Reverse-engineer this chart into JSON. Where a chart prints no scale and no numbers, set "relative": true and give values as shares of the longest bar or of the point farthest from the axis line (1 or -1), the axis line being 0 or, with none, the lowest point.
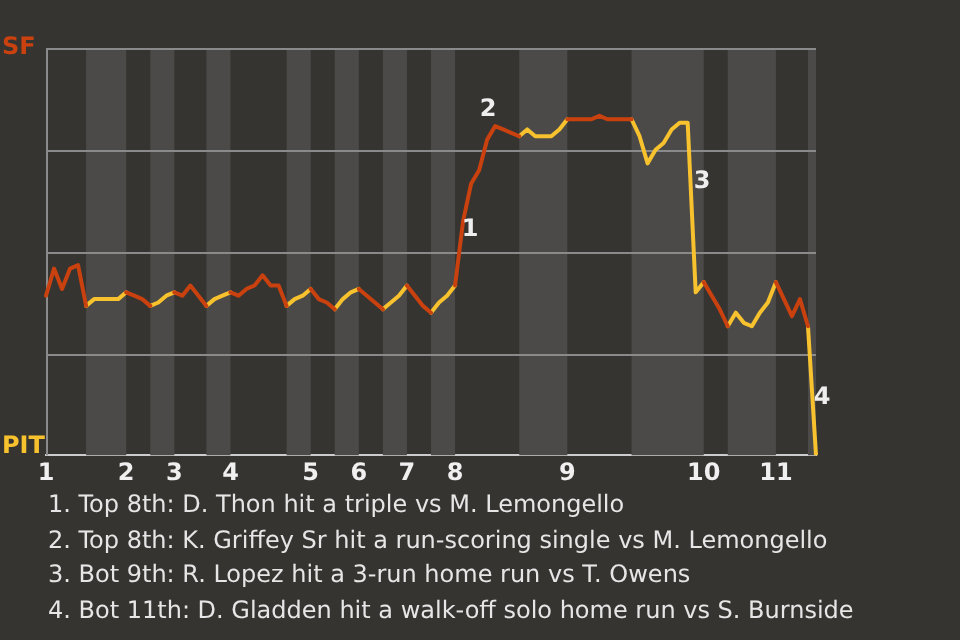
{
  "chart_data": {
    "type": "line",
    "relative": true,
    "categories": [
      "1",
      null,
      null,
      null,
      null,
      null,
      null,
      null,
      null,
      null,
      "2",
      null,
      null,
      null,
      null,
      null,
      "3",
      null,
      null,
      null,
      null,
      null,
      null,
      "4",
      null,
      null,
      null,
      null,
      null,
      null,
      null,
      null,
      null,
      "5",
      null,
      null,
      null,
      null,
      null,
      "6",
      null,
      null,
      null,
      null,
      null,
      "7",
      null,
      null,
      null,
      null,
      null,
      "8",
      null,
      null,
      null,
      null,
      null,
      null,
      null,
      null,
      null,
      null,
      null,
      null,
      null,
      "9",
      null,
      null,
      null,
      null,
      null,
      null,
      null,
      null,
      null,
      null,
      null,
      null,
      null,
      null,
      null,
      null,
      "10",
      null,
      null,
      null,
      null,
      null,
      null,
      null,
      null,
      "11",
      null,
      null,
      null,
      null,
      null
    ],
    "grid": "y",
    "legend": "left",
    "marker": "none",
    "line_style": "solid",
    "series": [
      {
        "name": "SF",
        "color": "#c9410e",
        "values": [
          0.47,
          0.55,
          0.49,
          0.55,
          0.56,
          0.44,
          null,
          null,
          null,
          null,
          0.48,
          0.47,
          0.46,
          0.44,
          null,
          null,
          0.48,
          0.47,
          0.5,
          0.47,
          0.44,
          null,
          null,
          0.48,
          0.47,
          0.49,
          0.5,
          0.53,
          0.5,
          0.5,
          0.44,
          null,
          null,
          0.49,
          0.46,
          0.45,
          0.43,
          null,
          null,
          0.49,
          0.47,
          0.45,
          0.43,
          null,
          null,
          0.5,
          0.47,
          0.44,
          0.42,
          null,
          null,
          0.5,
          0.69,
          0.8,
          0.84,
          0.93,
          0.97,
          0.96,
          0.95,
          0.94,
          null,
          null,
          null,
          null,
          null,
          0.99,
          0.99,
          0.99,
          0.99,
          1,
          0.99,
          0.99,
          0.99,
          0.99,
          null,
          null,
          null,
          null,
          null,
          null,
          null,
          null,
          0.51,
          0.47,
          0.43,
          0.38,
          null,
          null,
          null,
          null,
          null,
          0.51,
          0.46,
          0.41,
          0.46,
          0.38,
          null
        ]
      },
      {
        "name": "PIT",
        "color": "#f7c22e",
        "values": [
          null,
          null,
          null,
          null,
          null,
          0.44,
          0.46,
          0.46,
          0.46,
          0.46,
          0.48,
          null,
          null,
          0.44,
          0.45,
          0.47,
          0.48,
          null,
          null,
          null,
          0.44,
          0.46,
          0.47,
          0.48,
          null,
          null,
          null,
          null,
          null,
          null,
          0.44,
          0.46,
          0.47,
          0.49,
          null,
          null,
          0.43,
          0.46,
          0.48,
          0.49,
          null,
          null,
          0.43,
          0.45,
          0.47,
          0.5,
          null,
          null,
          0.42,
          0.45,
          0.47,
          0.5,
          null,
          null,
          null,
          null,
          null,
          null,
          null,
          0.94,
          0.96,
          0.94,
          0.94,
          0.94,
          0.96,
          0.99,
          null,
          null,
          null,
          null,
          null,
          null,
          null,
          0.99,
          0.94,
          0.86,
          0.9,
          0.92,
          0.96,
          0.98,
          0.98,
          0.48,
          0.51,
          null,
          null,
          0.38,
          0.42,
          0.39,
          0.38,
          0.42,
          0.45,
          0.51,
          null,
          null,
          null,
          0.38,
          0
        ]
      }
    ],
    "annotations": [
      "1",
      "2",
      "3",
      "4",
      "1. Top 8th: D. Thon hit a triple vs M. Lemongello",
      "2. Top 8th: K. Griffey Sr hit a run-scoring single vs M. Lemongello",
      "3. Bot 9th: R. Lopez hit a 3-run home run vs T. Owens",
      "4. Bot 11th: D. Gladden hit a walk-off solo home run vs S. Burnside"
    ]
  }
}
